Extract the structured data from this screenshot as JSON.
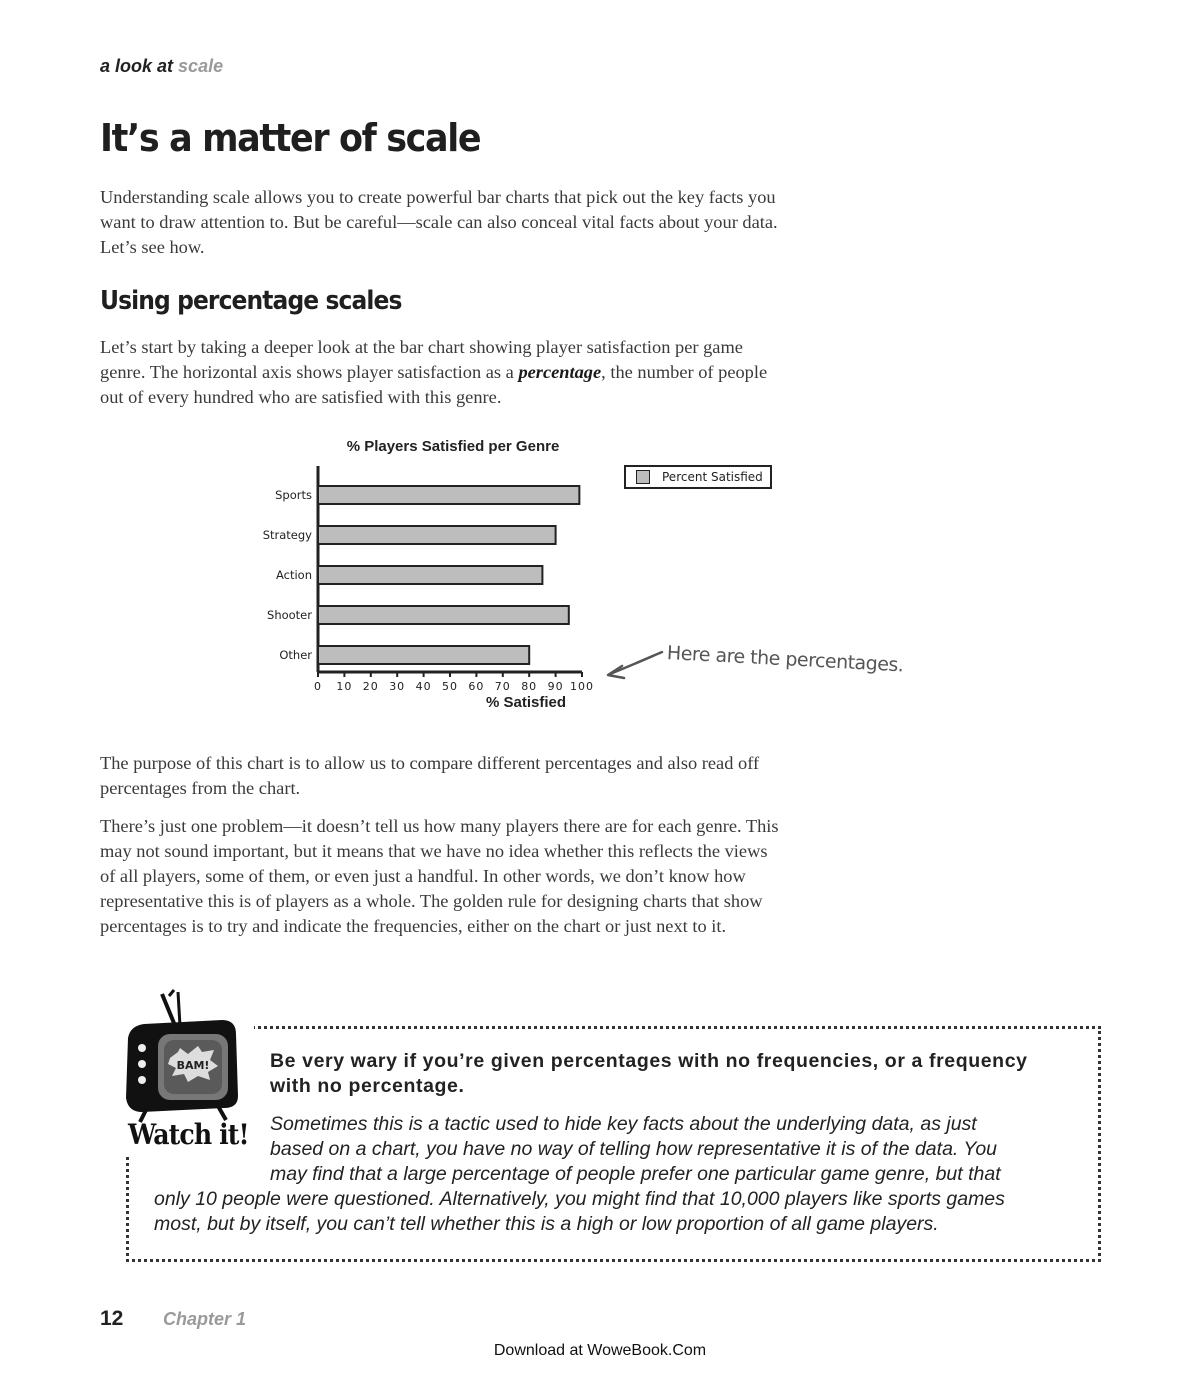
{
  "running_head": {
    "prefix": "a look at",
    "topic": "scale"
  },
  "title": "It’s a matter of scale",
  "intro": "Understanding scale allows you to create powerful bar charts that pick out the key facts you want to draw attention to. But be careful—scale can also conceal vital facts about your data. Let’s see how.",
  "section_title": "Using percentage scales",
  "section_para": {
    "before": "Let’s start by taking a deeper look at the bar chart showing player satisfaction per game genre. The horizontal axis shows player satisfaction as a ",
    "emphasis": "percentage",
    "after": ", the number of people out of every hundred who are satisfied with this genre."
  },
  "chart_data": {
    "type": "bar",
    "orientation": "horizontal",
    "title": "% Players Satisfied per Genre",
    "categories": [
      "Sports",
      "Strategy",
      "Action",
      "Shooter",
      "Other"
    ],
    "series": [
      {
        "name": "Percent Satisfied",
        "values": [
          99,
          90,
          85,
          95,
          80
        ]
      }
    ],
    "xlabel": "% Satisfied",
    "ylabel": "",
    "xlim": [
      0,
      100
    ],
    "xticks": [
      0,
      10,
      20,
      30,
      40,
      50,
      60,
      70,
      80,
      90,
      100
    ],
    "legend_position": "top-right",
    "bar_color": "#bdbdbd",
    "grid": false
  },
  "annotation": "Here are the percentages.",
  "para_purpose": "The purpose of this chart is to allow us to compare different percentages and also read off percentages from the chart.",
  "para_problem": "There’s just one problem—it doesn’t tell us how many players there are for each genre. This may not sound important, but it means that we have no idea whether this reflects the views of all players, some of them, or even just a handful. In other words, we don’t know how representative this is of players as a whole. The golden rule for designing charts that show percentages is to try and indicate the frequencies, either on the chart or just next to it.",
  "watch_it": {
    "label": "Watch it!",
    "tv_screen_text": "BAM!",
    "heading": "Be very wary if you’re given percentages with no frequencies, or a frequency with no percentage.",
    "body_lines": [
      "Sometimes this is a tactic used to hide key facts about the underlying data, as just",
      "based on a chart, you have no way of telling how representative it is of the data. You",
      "may find that a large percentage of people prefer one particular game genre, but that",
      "only 10 people were questioned. Alternatively, you might find that 10,000 players like sports games",
      "most, but by itself, you can’t tell whether this is a high or low proportion of all game players."
    ]
  },
  "footer": {
    "page_number": "12",
    "chapter": "Chapter 1",
    "download": "Download at WoweBook.Com"
  }
}
